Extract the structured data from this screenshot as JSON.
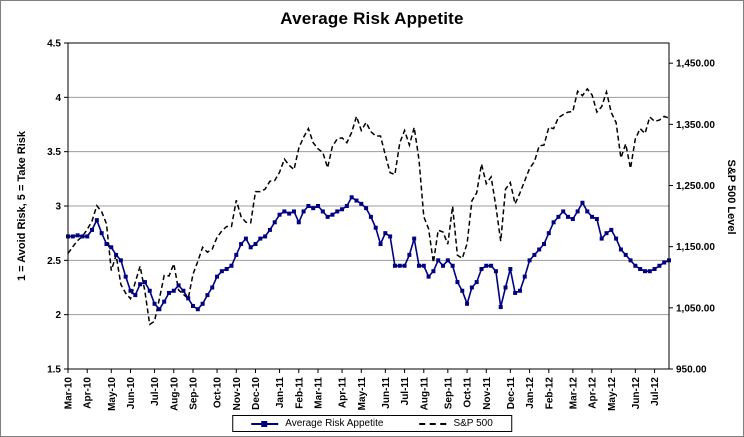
{
  "chart_data": {
    "type": "line",
    "title": "Average Risk Appetite",
    "grid": true,
    "legend_position": "bottom",
    "categories": [
      "Mar-10",
      "Apr-10",
      "May-10",
      "Jun-10",
      "Jul-10",
      "Aug-10",
      "Sep-10",
      "Oct-10",
      "Nov-10",
      "Dec-10",
      "Jan-11",
      "Feb-11",
      "Mar-11",
      "Apr-11",
      "May-11",
      "Jun-11",
      "Jul-11",
      "Aug-11",
      "Sep-11",
      "Oct-11",
      "Nov-11",
      "Dec-11",
      "Jan-12",
      "Feb-12",
      "Mar-12",
      "Apr-12",
      "May-12",
      "Jun-12",
      "Jul-12"
    ],
    "points_per_month": [
      4,
      5,
      4,
      5,
      4,
      4,
      5,
      4,
      4,
      5,
      4,
      4,
      5,
      4,
      5,
      4,
      4,
      5,
      4,
      4,
      5,
      4,
      4,
      5,
      4,
      4,
      5,
      4,
      4
    ],
    "left_axis": {
      "title": "1 = Avoid Risk, 5 = Take Risk",
      "min": 1.5,
      "max": 4.5,
      "tick_values": [
        1.5,
        2,
        2.5,
        3,
        3.5,
        4,
        4.5
      ],
      "tick_labels": [
        "1.5",
        "2",
        "2.5",
        "3",
        "3.5",
        "4",
        "4.5"
      ]
    },
    "right_axis": {
      "title": "S&P 500 Level",
      "min": 950,
      "max": 1483,
      "tick_values": [
        950,
        1050,
        1150,
        1250,
        1350,
        1450
      ],
      "tick_labels": [
        "950.00",
        "1,050.00",
        "1,150.00",
        "1,250.00",
        "1,350.00",
        "1,450.00"
      ]
    },
    "series": [
      {
        "name": "Average Risk Appetite",
        "axis": "left",
        "color": "#000080",
        "marker": "square",
        "line": "solid",
        "values": [
          2.72,
          2.72,
          2.73,
          2.72,
          2.72,
          2.78,
          2.87,
          2.75,
          2.65,
          2.62,
          2.55,
          2.5,
          2.35,
          2.22,
          2.18,
          2.28,
          2.3,
          2.22,
          2.1,
          2.05,
          2.12,
          2.2,
          2.22,
          2.27,
          2.22,
          2.15,
          2.08,
          2.05,
          2.1,
          2.18,
          2.25,
          2.35,
          2.4,
          2.42,
          2.45,
          2.55,
          2.65,
          2.7,
          2.62,
          2.65,
          2.7,
          2.72,
          2.78,
          2.85,
          2.92,
          2.95,
          2.93,
          2.95,
          2.85,
          2.95,
          3.0,
          2.98,
          3.0,
          2.95,
          2.9,
          2.92,
          2.95,
          2.97,
          3.0,
          3.08,
          3.05,
          3.02,
          2.98,
          2.9,
          2.8,
          2.65,
          2.75,
          2.72,
          2.45,
          2.45,
          2.45,
          2.55,
          2.7,
          2.45,
          2.45,
          2.35,
          2.4,
          2.5,
          2.45,
          2.5,
          2.45,
          2.3,
          2.22,
          2.1,
          2.25,
          2.3,
          2.42,
          2.45,
          2.45,
          2.4,
          2.07,
          2.25,
          2.42,
          2.2,
          2.22,
          2.35,
          2.5,
          2.55,
          2.6,
          2.65,
          2.75,
          2.85,
          2.9,
          2.95,
          2.9,
          2.88,
          2.95,
          3.03,
          2.95,
          2.9,
          2.88,
          2.7,
          2.75,
          2.78,
          2.7,
          2.6,
          2.55,
          2.5,
          2.45,
          2.42,
          2.4,
          2.4,
          2.42,
          2.45,
          2.48,
          2.5
        ]
      },
      {
        "name": "S&P 500",
        "axis": "right",
        "color": "#000000",
        "marker": "none",
        "line": "dashed",
        "values": [
          1139,
          1150,
          1160,
          1167,
          1178,
          1192,
          1217,
          1207,
          1187,
          1111,
          1136,
          1088,
          1074,
          1065,
          1092,
          1118,
          1077,
          1023,
          1028,
          1065,
          1103,
          1102,
          1122,
          1079,
          1072,
          1065,
          1105,
          1126,
          1149,
          1141,
          1146,
          1165,
          1176,
          1183,
          1183,
          1226,
          1199,
          1190,
          1189,
          1240,
          1240,
          1244,
          1257,
          1258,
          1272,
          1293,
          1283,
          1276,
          1311,
          1329,
          1343,
          1320,
          1310,
          1304,
          1279,
          1314,
          1326,
          1328,
          1320,
          1337,
          1363,
          1340,
          1353,
          1338,
          1331,
          1331,
          1300,
          1271,
          1268,
          1320,
          1340,
          1316,
          1345,
          1292,
          1199,
          1179,
          1124,
          1177,
          1174,
          1154,
          1216,
          1136,
          1131,
          1155,
          1225,
          1238,
          1285,
          1253,
          1264,
          1216,
          1159,
          1244,
          1255,
          1220,
          1238,
          1258,
          1278,
          1289,
          1315,
          1316,
          1345,
          1343,
          1361,
          1366,
          1370,
          1371,
          1404,
          1397,
          1408,
          1398,
          1370,
          1379,
          1403,
          1369,
          1353,
          1295,
          1318,
          1278,
          1326,
          1343,
          1335,
          1362,
          1355,
          1357,
          1363,
          1360
        ]
      }
    ],
    "colors": {
      "grid": "#9c9c9c",
      "axis": "#000000",
      "plot_border": "#000000"
    }
  }
}
